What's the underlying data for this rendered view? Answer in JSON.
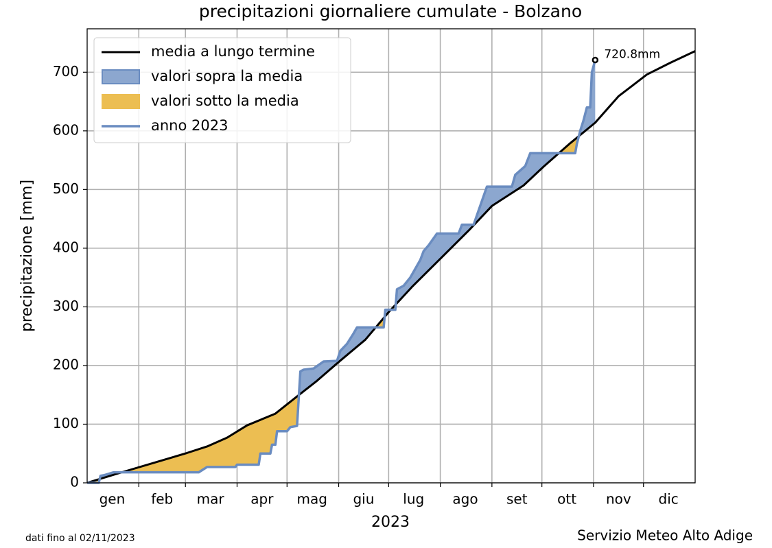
{
  "chart_data": {
    "type": "line",
    "title": "precipitazioni giornaliere cumulate - Bolzano",
    "x_label": "2023",
    "y_label": "precipitazione [mm]",
    "xlim": [
      0,
      365
    ],
    "ylim": [
      0,
      774
    ],
    "xticks": [
      31,
      59,
      90,
      120,
      151,
      181,
      212,
      243,
      273,
      304,
      334
    ],
    "x_tick_labels": [
      {
        "value": 15,
        "label": "gen"
      },
      {
        "value": 45,
        "label": "feb"
      },
      {
        "value": 74,
        "label": "mar"
      },
      {
        "value": 105,
        "label": "apr"
      },
      {
        "value": 135,
        "label": "mag"
      },
      {
        "value": 166,
        "label": "giu"
      },
      {
        "value": 196,
        "label": "lug"
      },
      {
        "value": 227,
        "label": "ago"
      },
      {
        "value": 258,
        "label": "set"
      },
      {
        "value": 288,
        "label": "ott"
      },
      {
        "value": 319,
        "label": "nov"
      },
      {
        "value": 349,
        "label": "dic"
      }
    ],
    "yticks": [
      0,
      100,
      200,
      300,
      400,
      500,
      600,
      700
    ],
    "grid": true,
    "legend": "upper left",
    "series": [
      {
        "name": "media a lungo termine",
        "color": "#000000",
        "x": [
          0,
          22,
          47,
          60,
          72,
          84,
          96,
          113,
          125,
          138,
          151,
          167,
          181,
          195,
          212,
          229,
          243,
          262,
          274,
          290,
          305,
          319,
          336,
          350,
          365
        ],
        "values": [
          0,
          19,
          40,
          51,
          62,
          77,
          98,
          118,
          145,
          174,
          206,
          244,
          291,
          334,
          382,
          430,
          472,
          507,
          539,
          579,
          614,
          659,
          696,
          716,
          736
        ]
      },
      {
        "name": "anno 2023",
        "color": "#6a8cc0",
        "x": [
          0,
          7,
          8,
          10,
          16,
          67,
          72,
          89,
          90,
          103,
          104,
          110,
          111,
          113,
          114,
          120,
          122,
          126,
          128,
          130,
          136,
          142,
          150,
          152,
          156,
          160,
          162,
          178,
          179,
          185,
          186,
          190,
          194,
          200,
          202,
          205,
          210,
          223,
          225,
          232,
          240,
          255,
          257,
          263,
          266,
          293,
          294,
          296,
          298,
          300,
          302,
          303,
          305
        ],
        "values": [
          0,
          0,
          12,
          13,
          18,
          18,
          27,
          27,
          31,
          31,
          50,
          50,
          65,
          65,
          88,
          88,
          95,
          97,
          190,
          193,
          195,
          207,
          208,
          225,
          237,
          255,
          265,
          265,
          295,
          295,
          330,
          336,
          350,
          380,
          395,
          405,
          425,
          425,
          440,
          440,
          505,
          505,
          525,
          540,
          562,
          562,
          578,
          600,
          618,
          640,
          640,
          700,
          720.8
        ]
      }
    ],
    "fills": [
      {
        "name": "valori sopra la media",
        "color": "#8ca7cf"
      },
      {
        "name": "valori sotto la media",
        "color": "#ecbe52"
      }
    ],
    "annotations": [
      {
        "text": "720.8mm",
        "x": 305,
        "y": 720.8
      }
    ],
    "footer_left": "dati fino al 02/11/2023",
    "footer_right": "Servizio Meteo Alto Adige"
  }
}
